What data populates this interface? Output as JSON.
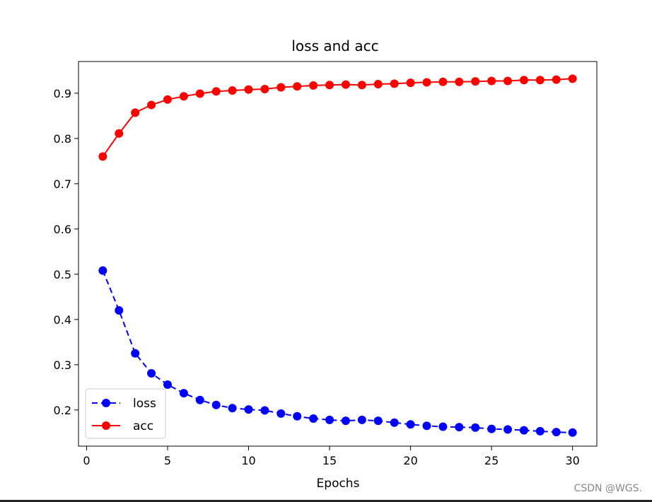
{
  "chart_data": {
    "type": "line",
    "title": "loss and acc",
    "xlabel": "Epochs",
    "ylabel": "",
    "xlim": [
      -0.5,
      31.5
    ],
    "ylim": [
      0.12,
      0.97
    ],
    "xticks": [
      0,
      5,
      10,
      15,
      20,
      25,
      30
    ],
    "yticks": [
      0.2,
      0.3,
      0.4,
      0.5,
      0.6,
      0.7,
      0.8,
      0.9
    ],
    "grid": false,
    "legend_position": "lower-left",
    "x": [
      1,
      2,
      3,
      4,
      5,
      6,
      7,
      8,
      9,
      10,
      11,
      12,
      13,
      14,
      15,
      16,
      17,
      18,
      19,
      20,
      21,
      22,
      23,
      24,
      25,
      26,
      27,
      28,
      29,
      30
    ],
    "series": [
      {
        "name": "loss",
        "color": "#0000ff",
        "line_style": "dashed",
        "marker": "circle",
        "values": [
          0.508,
          0.42,
          0.325,
          0.281,
          0.256,
          0.237,
          0.222,
          0.211,
          0.204,
          0.201,
          0.199,
          0.192,
          0.186,
          0.181,
          0.178,
          0.176,
          0.178,
          0.176,
          0.172,
          0.168,
          0.165,
          0.163,
          0.162,
          0.161,
          0.158,
          0.157,
          0.155,
          0.153,
          0.151,
          0.15
        ]
      },
      {
        "name": "acc",
        "color": "#ff0000",
        "line_style": "solid",
        "marker": "circle",
        "values": [
          0.76,
          0.811,
          0.857,
          0.874,
          0.886,
          0.893,
          0.899,
          0.904,
          0.906,
          0.908,
          0.909,
          0.913,
          0.915,
          0.917,
          0.918,
          0.919,
          0.918,
          0.92,
          0.921,
          0.923,
          0.924,
          0.925,
          0.925,
          0.926,
          0.927,
          0.927,
          0.929,
          0.929,
          0.93,
          0.932
        ]
      }
    ]
  },
  "watermark": "CSDN @WGS."
}
